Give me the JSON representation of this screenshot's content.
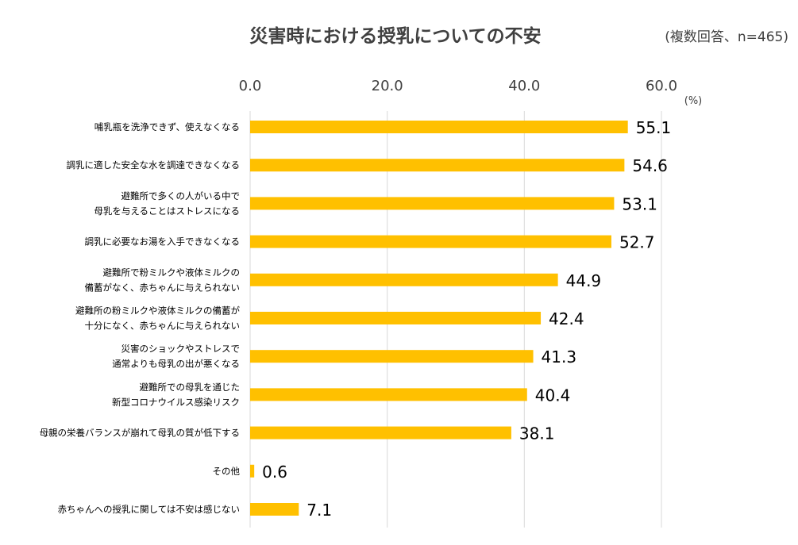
{
  "chart_data": {
    "type": "bar",
    "orientation": "horizontal",
    "title": "災害時における授乳についての不安",
    "subtitle": "(複数回答、n=465)",
    "unit_label": "(%)",
    "xlim": [
      0,
      60
    ],
    "ticks": [
      "0.0",
      "20.0",
      "40.0",
      "60.0"
    ],
    "tick_values": [
      0,
      20,
      40,
      60
    ],
    "grid": true,
    "bar_color": "#FFC000",
    "categories": [
      [
        "哺乳瓶を洗浄できず、使えなくなる"
      ],
      [
        "調乳に適した安全な水を調達できなくなる"
      ],
      [
        "避難所で多くの人がいる中で",
        "母乳を与えることはストレスになる"
      ],
      [
        "調乳に必要なお湯を入手できなくなる"
      ],
      [
        "避難所で粉ミルクや液体ミルクの",
        "備蓄がなく、赤ちゃんに与えられない"
      ],
      [
        "避難所の粉ミルクや液体ミルクの備蓄が",
        "十分になく、赤ちゃんに与えられない"
      ],
      [
        "災害のショックやストレスで",
        "通常よりも母乳の出が悪くなる"
      ],
      [
        "避難所での母乳を通じた",
        "新型コロナウイルス感染リスク"
      ],
      [
        "母親の栄養バランスが崩れて母乳の質が低下する"
      ],
      [
        "その他"
      ],
      [
        "赤ちゃんへの授乳に関しては不安は感じない"
      ]
    ],
    "values": [
      55.1,
      54.6,
      53.1,
      52.7,
      44.9,
      42.4,
      41.3,
      40.4,
      38.1,
      0.6,
      7.1
    ],
    "value_labels": [
      "55.1",
      "54.6",
      "53.1",
      "52.7",
      "44.9",
      "42.4",
      "41.3",
      "40.4",
      "38.1",
      "0.6",
      "7.1"
    ]
  }
}
